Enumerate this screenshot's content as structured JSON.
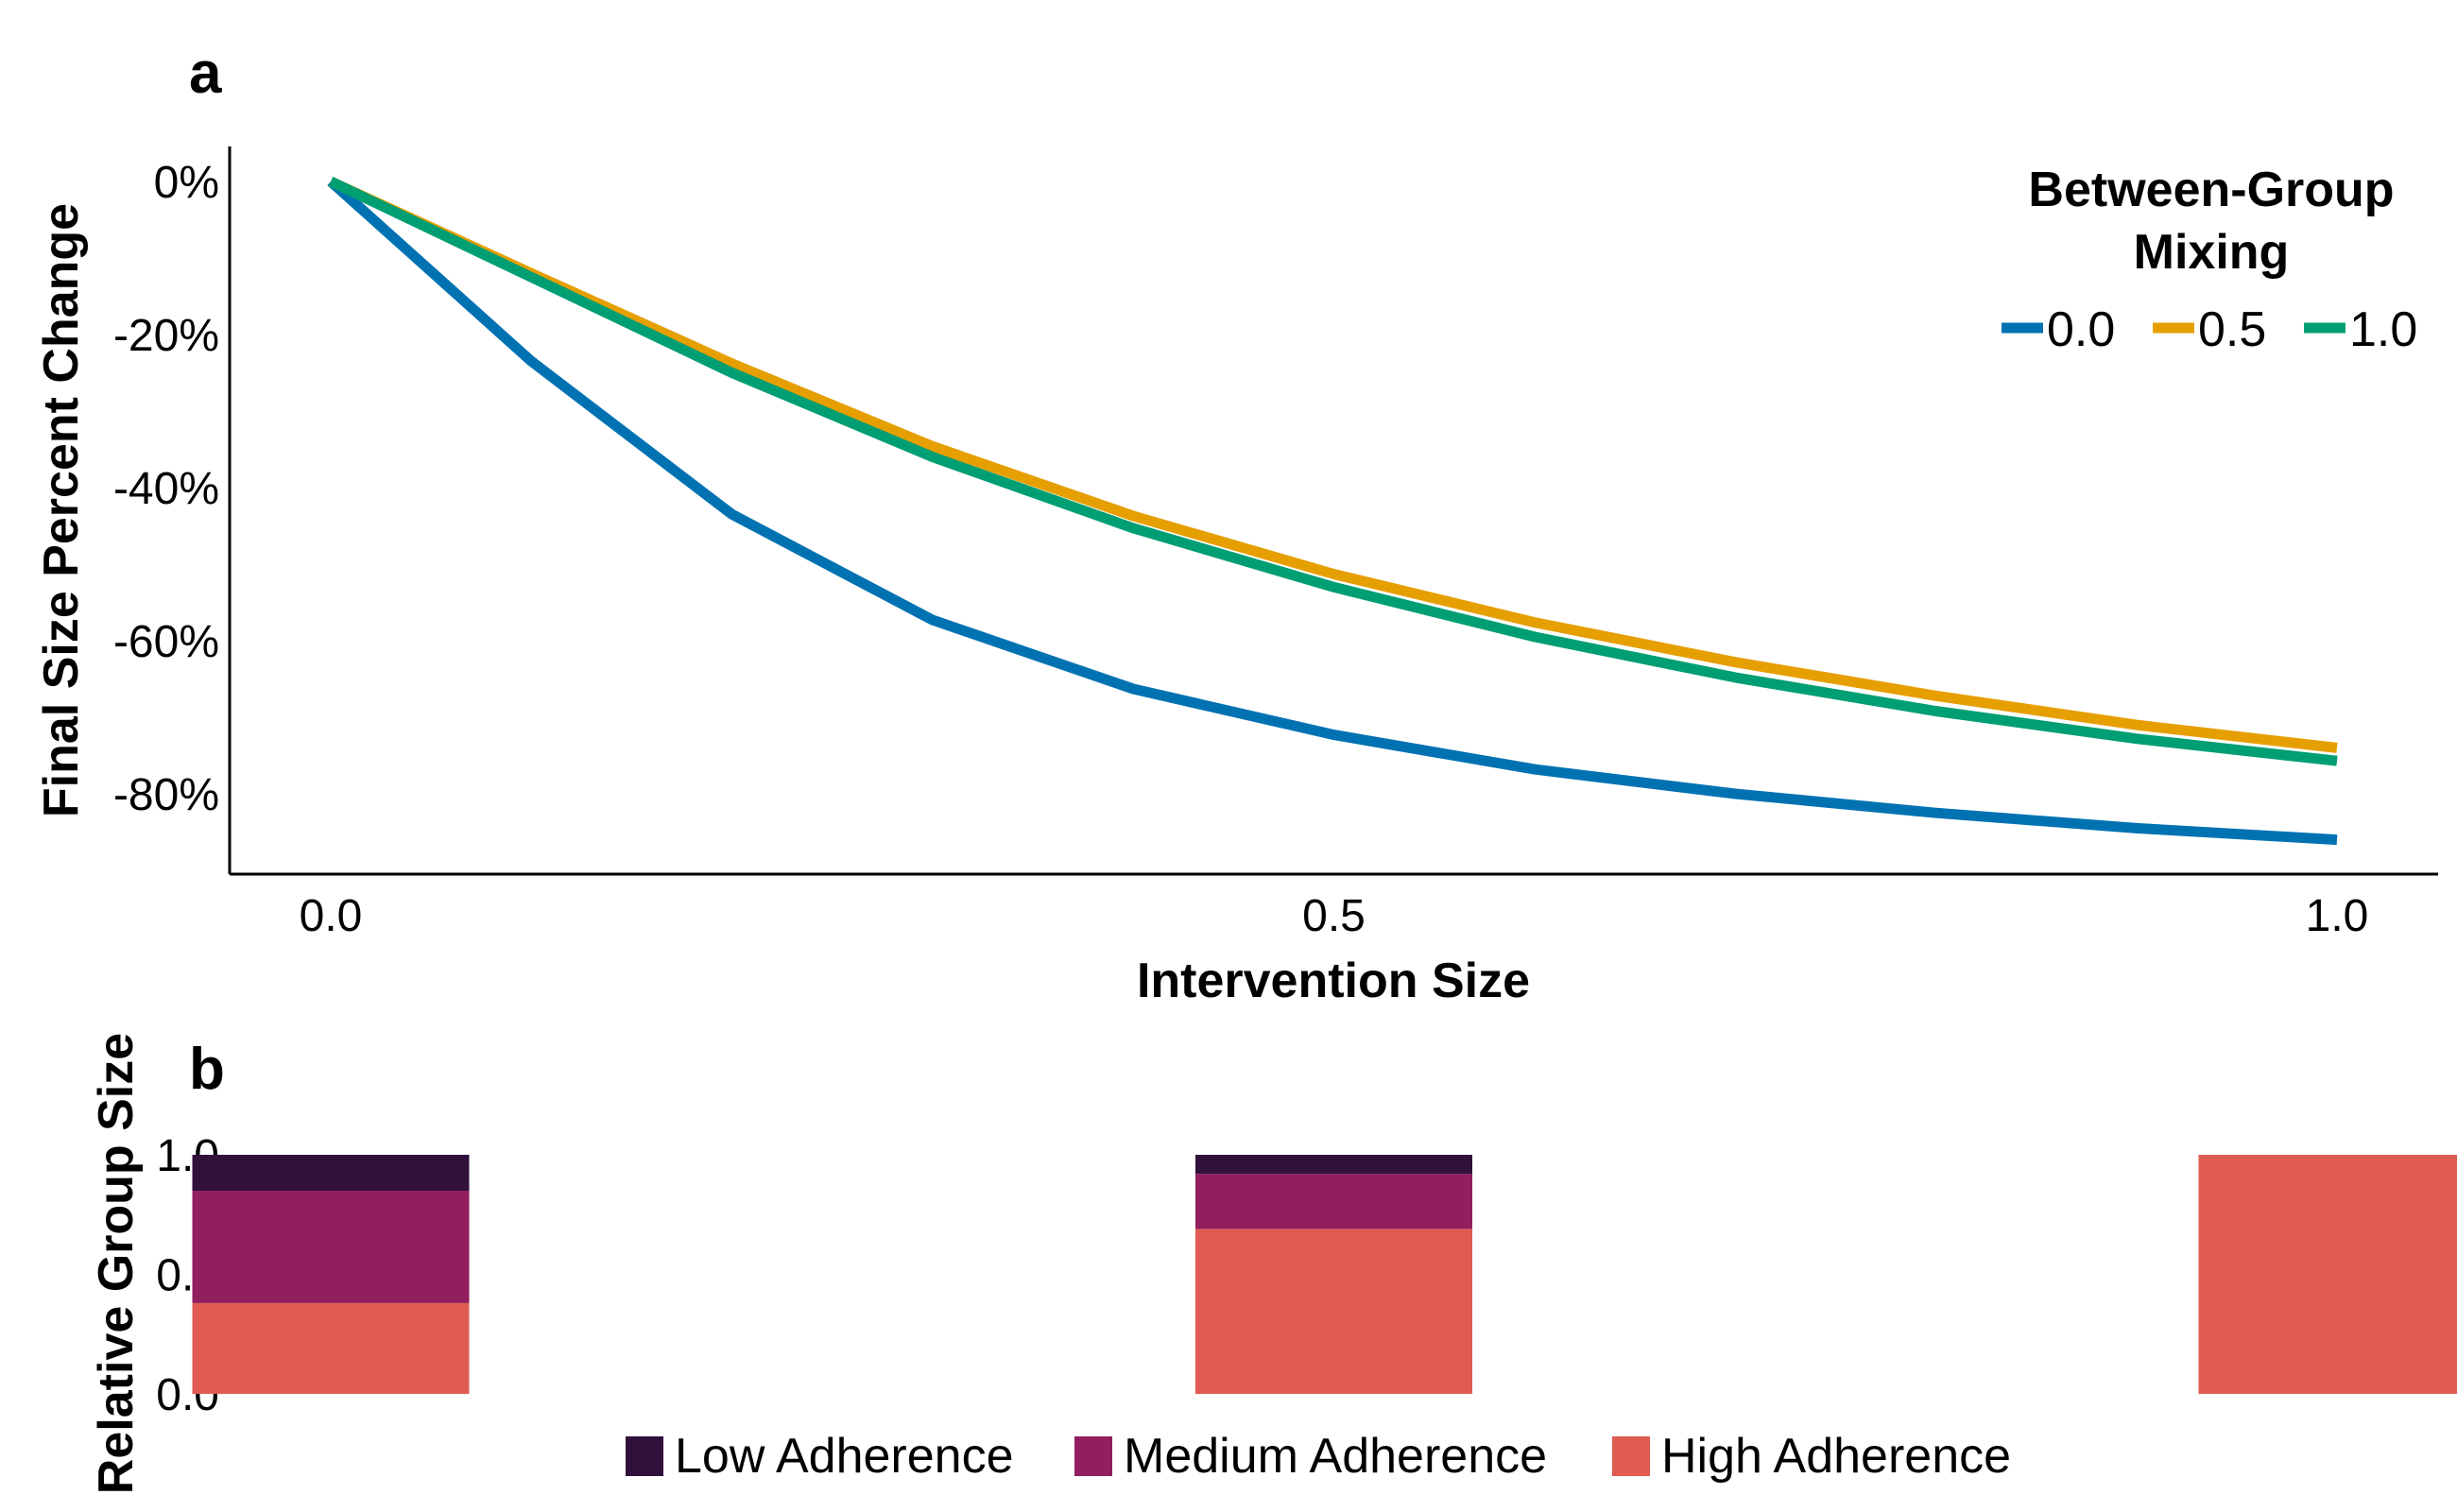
{
  "chart_data": [
    {
      "panel": "a",
      "type": "line",
      "xlabel": "Intervention Size",
      "ylabel": "Final Size Percent Change",
      "xlim": [
        0,
        1
      ],
      "ylim": [
        -0.9,
        0.045
      ],
      "xticks": [
        0.0,
        0.5,
        1.0
      ],
      "xtick_labels": [
        "0.0",
        "0.5",
        "1.0"
      ],
      "yticks": [
        0,
        -0.2,
        -0.4,
        -0.6,
        -0.8
      ],
      "ytick_labels": [
        "0%",
        "-20%",
        "-40%",
        "-60%",
        "-80%"
      ],
      "grid": false,
      "legend": {
        "title_lines": [
          "Between-Group",
          "Mixing"
        ],
        "placement": "top-right",
        "orientation": "horizontal"
      },
      "x": [
        0.0,
        0.1,
        0.2,
        0.3,
        0.4,
        0.5,
        0.6,
        0.7,
        0.8,
        0.9,
        1.0
      ],
      "series": [
        {
          "name": "0.0",
          "color": "#0072B2",
          "values": [
            0,
            -0.235,
            -0.435,
            -0.573,
            -0.663,
            -0.723,
            -0.768,
            -0.8,
            -0.825,
            -0.845,
            -0.86
          ]
        },
        {
          "name": "0.5",
          "color": "#E69F00",
          "values": [
            0,
            -0.12,
            -0.238,
            -0.346,
            -0.437,
            -0.513,
            -0.576,
            -0.628,
            -0.672,
            -0.71,
            -0.74
          ]
        },
        {
          "name": "1.0",
          "color": "#009E73",
          "values": [
            0,
            -0.125,
            -0.25,
            -0.36,
            -0.453,
            -0.53,
            -0.595,
            -0.648,
            -0.692,
            -0.728,
            -0.757
          ]
        }
      ]
    },
    {
      "panel": "b",
      "type": "bar",
      "stacked": true,
      "xlabel": "",
      "ylabel": "Relative Group Size",
      "ylim": [
        0,
        1
      ],
      "yticks": [
        0.0,
        0.5,
        1.0
      ],
      "ytick_labels": [
        "0.0",
        "0.5",
        "1.0"
      ],
      "categories": [
        0.0,
        0.5,
        1.0
      ],
      "legend": {
        "placement": "bottom",
        "orientation": "horizontal"
      },
      "series": [
        {
          "name": "High Adherence",
          "color": "#E05C52",
          "values": [
            0.38,
            0.69,
            1.0
          ]
        },
        {
          "name": "Medium Adherence",
          "color": "#911E5F",
          "values": [
            0.47,
            0.23,
            0.0
          ]
        },
        {
          "name": "Low Adherence",
          "color": "#32103C",
          "values": [
            0.15,
            0.08,
            0.0
          ]
        }
      ],
      "legend_order": [
        "Low Adherence",
        "Medium Adherence",
        "High Adherence"
      ]
    }
  ],
  "panels": {
    "a_label": "a",
    "b_label": "b"
  }
}
